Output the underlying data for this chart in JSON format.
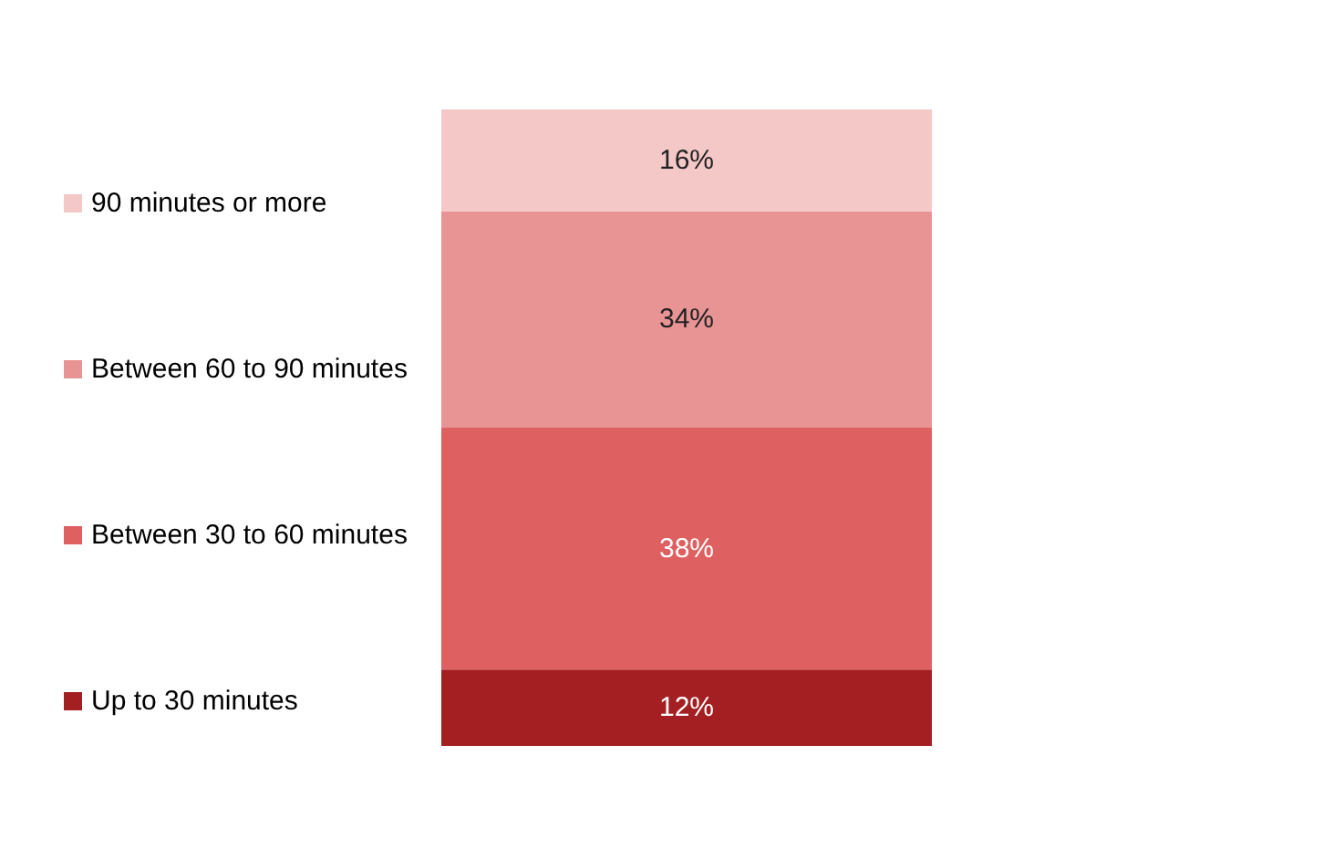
{
  "chart_data": {
    "type": "bar",
    "stacked": true,
    "categories": [
      null
    ],
    "legend": "left",
    "series": [
      {
        "name": "Up to 30 minutes",
        "color": "#a31f22",
        "values": [
          12
        ],
        "value_labels": [
          "12%"
        ]
      },
      {
        "name": "Between 30 to 60 minutes",
        "color": "#de6060",
        "values": [
          38
        ],
        "value_labels": [
          "38%"
        ]
      },
      {
        "name": "Between 60 to 90 minutes",
        "color": "#e89494",
        "values": [
          34
        ],
        "value_labels": [
          "34%"
        ]
      },
      {
        "name": "90 minutes or more",
        "color": "#f5c8c8",
        "values": [
          16
        ],
        "value_labels": [
          "16%"
        ]
      }
    ]
  }
}
